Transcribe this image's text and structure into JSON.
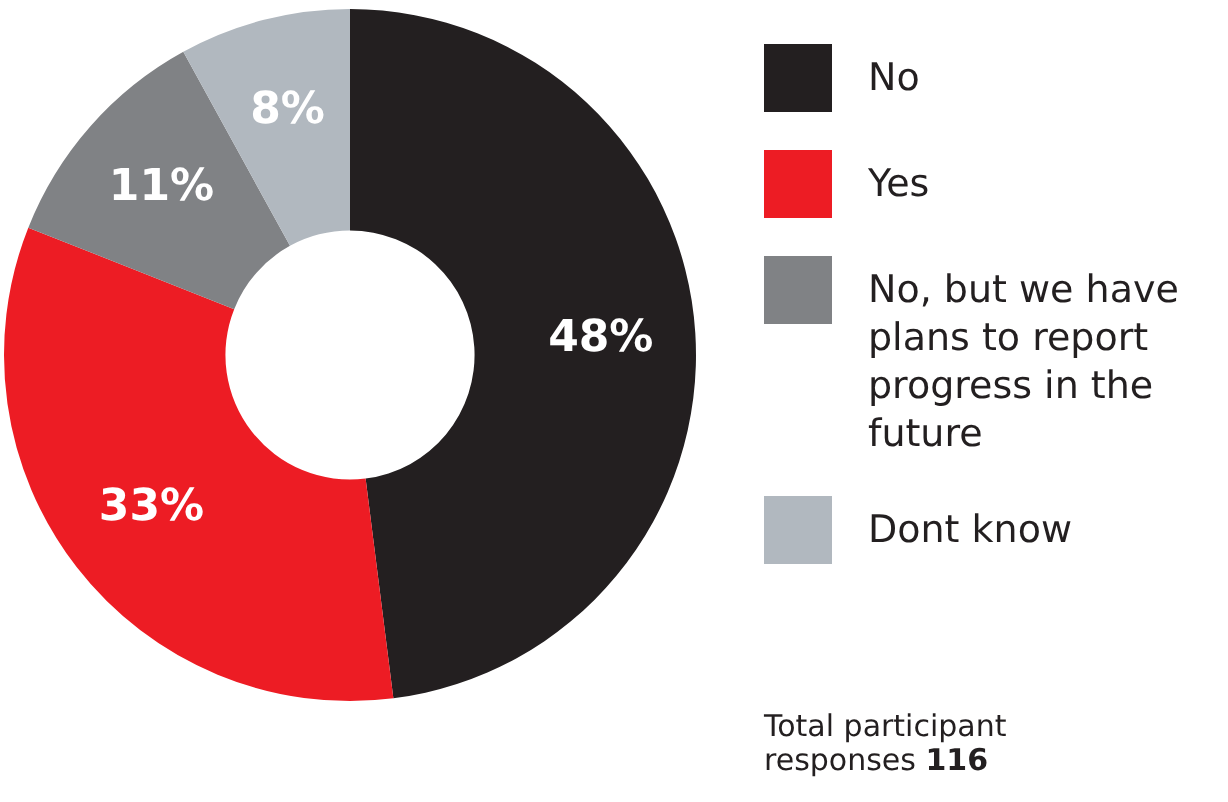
{
  "chart_data": {
    "type": "donut",
    "categories": [
      "No",
      "Yes",
      "No, but we have plans to report progress in the future",
      "Dont know"
    ],
    "values": [
      48,
      33,
      11,
      8
    ],
    "colors": [
      "#231f20",
      "#ed1c24",
      "#808285",
      "#b1b8bf"
    ],
    "value_labels": [
      "48%",
      "33%",
      "11%",
      "8%"
    ],
    "legend": "right",
    "annotations": [
      "Total participant responses 116"
    ]
  }
}
